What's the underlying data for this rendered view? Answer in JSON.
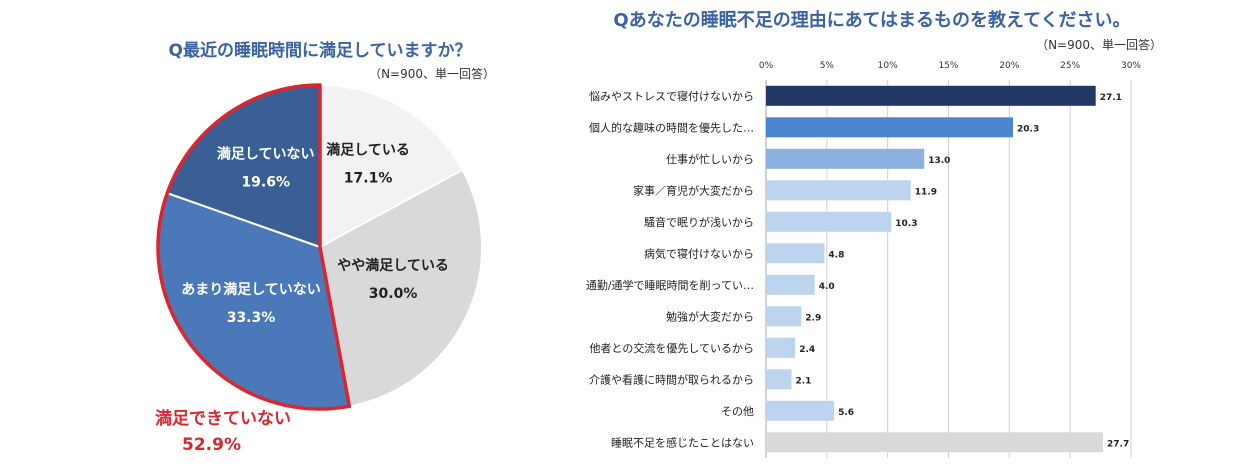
{
  "chart_data": [
    {
      "type": "pie",
      "title": "Q最近の睡眠時間に満足していますか？",
      "note": "（N=900、単一回答）",
      "unit": "%",
      "slices": [
        {
          "label": "満足している",
          "value": 17.1,
          "value_text": "17.1%",
          "color": "#f2f2f2",
          "text_color": "#222222"
        },
        {
          "label": "やや満足している",
          "value": 30.0,
          "value_text": "30.0%",
          "color": "#d9d9d9",
          "text_color": "#222222"
        },
        {
          "label": "あまり満足していない",
          "value": 33.3,
          "value_text": "33.3%",
          "color": "#4a78b9",
          "text_color": "#ffffff"
        },
        {
          "label": "満足していない",
          "value": 19.6,
          "value_text": "19.6%",
          "color": "#3a5f95",
          "text_color": "#ffffff"
        }
      ],
      "highlight": {
        "label": "満足できていない",
        "value_text": "52.9%",
        "value": 52.9,
        "color": "#e0242c"
      }
    },
    {
      "type": "bar",
      "orientation": "horizontal",
      "title": "Qあなたの睡眠不足の理由にあてはまるものを教えてください。",
      "note": "（N=900、単一回答）",
      "xlim": [
        0,
        30
      ],
      "ticks": [
        0,
        5,
        10,
        15,
        20,
        25,
        30
      ],
      "tick_labels": [
        "0%",
        "5%",
        "10%",
        "15%",
        "20%",
        "25%",
        "30%"
      ],
      "grid": true,
      "categories": [
        "悩みやストレスで寝付けないから",
        "個人的な趣味の時間を優先した…",
        "仕事が忙しいから",
        "家事／育児が大変だから",
        "騒音で眠りが浅いから",
        "病気で寝付けないから",
        "通勤/通学で睡眠時間を削ってい…",
        "勉強が大変だから",
        "他者との交流を優先しているから",
        "介護や看護に時間が取られるから",
        "その他",
        "睡眠不足を感じたことはない"
      ],
      "values": [
        27.1,
        20.3,
        13.0,
        11.9,
        10.3,
        4.8,
        4.0,
        2.9,
        2.4,
        2.1,
        5.6,
        27.7
      ],
      "value_labels": [
        "27.1",
        "20.3",
        "13.0",
        "11.9",
        "10.3",
        "4.8",
        "4.0",
        "2.9",
        "2.4",
        "2.1",
        "5.6",
        "27.7"
      ],
      "colors": [
        "#1f3864",
        "#4a86d0",
        "#8db0e0",
        "#bdd4ef",
        "#bdd4ef",
        "#bdd4ef",
        "#bdd4ef",
        "#bdd4ef",
        "#bdd4ef",
        "#bdd4ef",
        "#bdd4ef",
        "#d9d9d9"
      ]
    }
  ]
}
